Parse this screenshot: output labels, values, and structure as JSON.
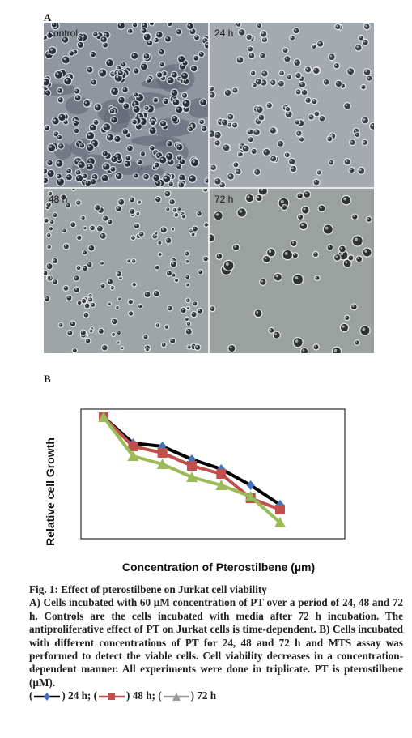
{
  "figure": {
    "panel_a_letter": "A",
    "panel_b_letter": "B",
    "micrographs": [
      {
        "label": "control"
      },
      {
        "label": "24 h"
      },
      {
        "label": "48 h"
      },
      {
        "label": "72 h"
      }
    ]
  },
  "chart_data": {
    "type": "line",
    "xlabel": "Concentration of Pterostilbene (µm)",
    "ylabel": "Relative cell Growth",
    "x": [
      0,
      1,
      2,
      3,
      4,
      5,
      6
    ],
    "grid": false,
    "series": [
      {
        "name": "24 h",
        "color": "#4472c4",
        "line_color": "#000000",
        "marker": "diamond",
        "values": [
          1.0,
          0.84,
          0.82,
          0.74,
          0.68,
          0.58,
          0.46
        ]
      },
      {
        "name": "48 h",
        "color": "#c0504d",
        "line_color": "#c0504d",
        "marker": "square",
        "values": [
          1.0,
          0.82,
          0.78,
          0.7,
          0.65,
          0.5,
          0.43
        ]
      },
      {
        "name": "72 h",
        "color": "#9bbb59",
        "line_color": "#9bbb59",
        "marker": "triangle",
        "values": [
          1.0,
          0.76,
          0.71,
          0.63,
          0.58,
          0.51,
          0.35
        ]
      }
    ]
  },
  "caption": {
    "title": "Fig. 1: Effect of pterostilbene on Jurkat cell viability",
    "body": "A) Cells incubated with 60 µM concentration of PT over a period of 24, 48 and 72 h. Controls are the cells incubated with media after 72 h incubation. The antiproliferative effect of PT on Jurkat cells is time-dependent. B) Cells incubated with different concentrations of PT for 24, 48 and 72 h and MTS assay was performed to detect the viable cells. Cell viability decreases in a concentration-dependent manner. All experiments were done in triplicate. PT is pterostilbene (µM).",
    "legend": [
      {
        "open": "(",
        "close": ") 24 h;"
      },
      {
        "open": "(",
        "close": ") 48 h;"
      },
      {
        "open": "(",
        "close": ") 72 h"
      }
    ]
  }
}
